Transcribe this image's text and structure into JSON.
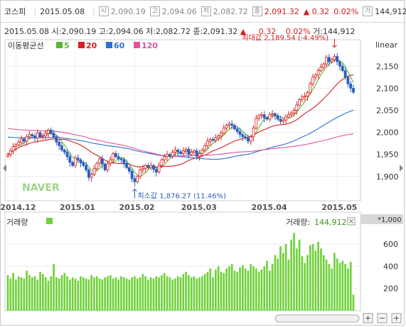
{
  "topbar": {
    "name": "코스피",
    "date": "2015.05.08",
    "open_icon": "시",
    "open": "2,090.19",
    "high_icon": "고",
    "high": "2,094.06",
    "low_icon": "저",
    "low": "2,082.72",
    "close_icon": "종",
    "close": "2,091.32",
    "change": "▲ 0.32",
    "change_pct": "0.02%",
    "volume_icon": "거",
    "volume": "144,912"
  },
  "infobar": {
    "date": "2015.05.08",
    "open_label": "시:",
    "open": "2,090.19",
    "high_label": "고:",
    "high": "2,094.06",
    "low_label": "저:",
    "low": "2,082.72",
    "close_label": "종:",
    "close": "2,091.32",
    "change_arrow": "▲",
    "change": "0.32",
    "change_pct": "0.02%",
    "volume_label": "거:",
    "volume": "144,912"
  },
  "price_panel": {
    "scale_label": "linear",
    "ma_label": "이동평균선",
    "max_annotation": "최대값 2,189.54 (-4.49%)",
    "min_annotation": "최소값 1,876.27 (11.46%)",
    "watermark": "NAVER"
  },
  "volume_panel": {
    "label": "거래량",
    "volume_readout_label": "거래량:",
    "volume_readout_value": "144,912",
    "unit": "*1,000"
  },
  "colors": {
    "up": "#d4201f",
    "down": "#2b5fbe",
    "ma5": "#5db531",
    "ma20": "#d4201f",
    "ma60": "#2f6fd0",
    "ma120": "#e0529c",
    "volume": "#6fd13a"
  },
  "chart_data": [
    {
      "type": "candlestick",
      "title": "코스피",
      "x_tick_labels": [
        "2014.12",
        "2015.01",
        "2015.02",
        "2015.03",
        "2015.04",
        "2015.05"
      ],
      "y_ticks": [
        1900,
        1950,
        2000,
        2050,
        2100,
        2150
      ],
      "ylim": [
        1845,
        2210
      ],
      "scale": "linear",
      "grid": true,
      "legend": {
        "position": "top-left",
        "entries": [
          {
            "name": "5",
            "color": "#5db531"
          },
          {
            "name": "20",
            "color": "#d4201f"
          },
          {
            "name": "60",
            "color": "#2f6fd0"
          },
          {
            "name": "120",
            "color": "#e0529c"
          }
        ]
      },
      "close_series": [
        1950,
        1958,
        1968,
        1972,
        1978,
        1985,
        1980,
        1990,
        1995,
        1992,
        1987,
        1999,
        1990,
        1992,
        1998,
        2005,
        1998,
        1990,
        1978,
        1970,
        1960,
        1955,
        1945,
        1932,
        1925,
        1942,
        1938,
        1931,
        1925,
        1915,
        1898,
        1905,
        1918,
        1930,
        1940,
        1928,
        1915,
        1930,
        1938,
        1952,
        1945,
        1940,
        1938,
        1930,
        1920,
        1912,
        1895,
        1888,
        1900,
        1915,
        1918,
        1925,
        1920,
        1925,
        1916,
        1910,
        1925,
        1938,
        1945,
        1950,
        1946,
        1955,
        1960,
        1956,
        1952,
        1958,
        1962,
        1950,
        1955,
        1958,
        1946,
        1952,
        1960,
        1970,
        1980,
        1984,
        1982,
        1988,
        1992,
        1998,
        2010,
        2016,
        2019,
        2016,
        2008,
        2002,
        1995,
        1990,
        1987,
        1980,
        1990,
        2010,
        2032,
        2038,
        2040,
        2033,
        2030,
        2040,
        2042,
        2038,
        2030,
        2025,
        2028,
        2035,
        2040,
        2044,
        2050,
        2062,
        2074,
        2080,
        2082,
        2090,
        2110,
        2125,
        2130,
        2140,
        2148,
        2155,
        2170,
        2160,
        2165,
        2172,
        2160,
        2150,
        2140,
        2125,
        2110,
        2100,
        2091
      ],
      "ma_series": [
        {
          "name": "5"
        },
        {
          "name": "20"
        },
        {
          "name": "60"
        },
        {
          "name": "120"
        }
      ],
      "annotations": [
        {
          "text": "최대값 2,189.54 (-4.49%)",
          "value": 2189.54
        },
        {
          "text": "최소값 1,876.27 (11.46%)",
          "value": 1876.27
        }
      ]
    },
    {
      "type": "bar",
      "title": "거래량",
      "y_ticks": [
        200,
        400,
        600
      ],
      "ylim": [
        0,
        760
      ],
      "unit": "*1,000",
      "last_value": 144.912,
      "values": [
        320,
        290,
        340,
        280,
        310,
        300,
        290,
        360,
        320,
        300,
        310,
        280,
        350,
        330,
        300,
        270,
        310,
        420,
        300,
        290,
        320,
        340,
        310,
        280,
        300,
        290,
        270,
        310,
        300,
        290,
        280,
        320,
        300,
        310,
        290,
        280,
        300,
        310,
        320,
        290,
        300,
        280,
        310,
        300,
        290,
        280,
        300,
        310,
        290,
        300,
        330,
        310,
        280,
        300,
        290,
        310,
        300,
        320,
        340,
        310,
        300,
        280,
        290,
        310,
        300,
        330,
        350,
        320,
        300,
        310,
        290,
        300,
        310,
        330,
        350,
        380,
        300,
        370,
        400,
        350,
        340,
        380,
        400,
        420,
        360,
        350,
        390,
        410,
        380,
        360,
        420,
        400,
        380,
        350,
        370,
        400,
        450,
        360,
        420,
        500,
        470,
        580,
        520,
        600,
        460,
        640,
        700,
        560,
        640,
        490,
        430,
        500,
        590,
        600,
        540,
        620,
        560,
        500,
        460,
        420,
        380,
        520,
        470,
        430,
        450,
        420,
        380,
        440,
        145
      ]
    }
  ]
}
